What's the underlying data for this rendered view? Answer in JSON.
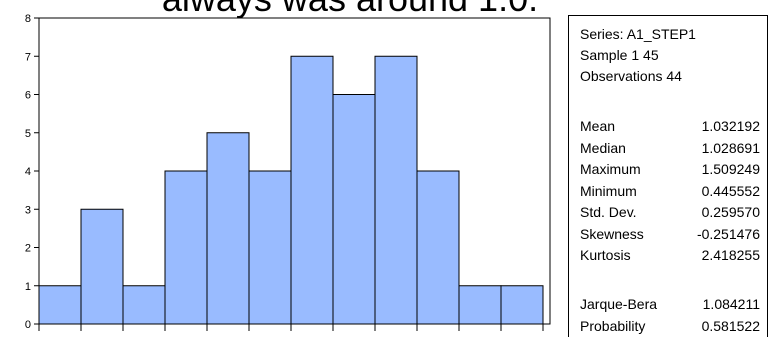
{
  "overlay_text": "always was around 1.0.",
  "chart_data": {
    "type": "bar",
    "title": "",
    "xlabel": "",
    "ylabel": "",
    "ylim": [
      0,
      8
    ],
    "yticks": [
      0,
      1,
      2,
      3,
      4,
      5,
      6,
      7,
      8
    ],
    "grid": false,
    "bar_color": "#99BBFF",
    "bar_edge_color": "#000000",
    "values": [
      1,
      3,
      1,
      4,
      5,
      4,
      7,
      6,
      7,
      4,
      1,
      1
    ]
  },
  "stats": {
    "series_line": "Series: A1_STEP1",
    "sample_line": "Sample 1 45",
    "obs_line": "Observations 44",
    "rows": [
      {
        "label": "Mean",
        "value": "1.032192"
      },
      {
        "label": "Median",
        "value": "1.028691"
      },
      {
        "label": "Maximum",
        "value": "1.509249"
      },
      {
        "label": "Minimum",
        "value": "0.445552"
      },
      {
        "label": "Std. Dev.",
        "value": "0.259570"
      },
      {
        "label": "Skewness",
        "value": "-0.251476"
      },
      {
        "label": "Kurtosis",
        "value": "2.418255"
      }
    ],
    "test_rows": [
      {
        "label": "Jarque-Bera",
        "value": "1.084211"
      },
      {
        "label": "Probability",
        "value": "0.581522"
      }
    ]
  }
}
